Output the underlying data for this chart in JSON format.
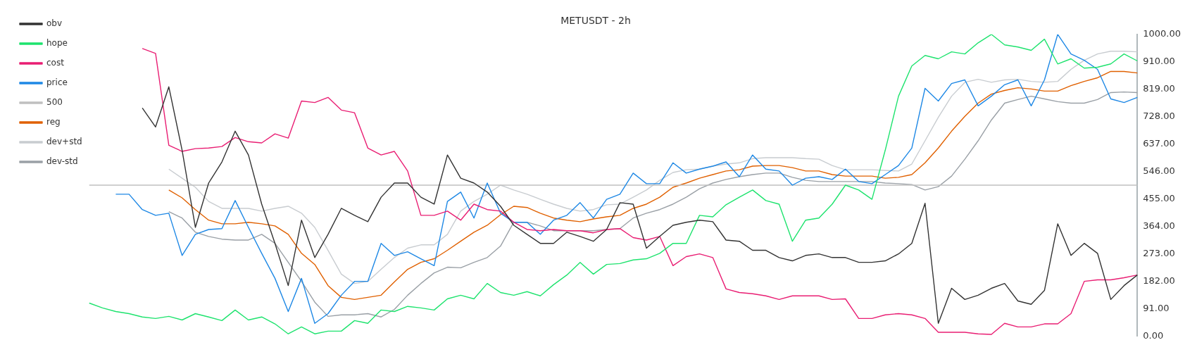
{
  "chart_data": {
    "type": "line",
    "title": "METUSDT - 2h",
    "categories": [
      null,
      null,
      null,
      null,
      null,
      null,
      null,
      null,
      null,
      null,
      null,
      null,
      null,
      null,
      null,
      null,
      null,
      null,
      null,
      null,
      null,
      null,
      null,
      null,
      null,
      null,
      null,
      null,
      null,
      null,
      null,
      null,
      null,
      null,
      null,
      null,
      null,
      null,
      null,
      null,
      null,
      null,
      null,
      null,
      null,
      null,
      null,
      null,
      null,
      null,
      null,
      null,
      null,
      null,
      null,
      null,
      null,
      null,
      null,
      null,
      null,
      null,
      null,
      null,
      null,
      null,
      null,
      null,
      null,
      null,
      null,
      null,
      null,
      null,
      null,
      null,
      null,
      null,
      null,
      null
    ],
    "series": [
      {
        "name": "obv",
        "color": "#333333",
        "values": [
          null,
          null,
          null,
          null,
          756,
          693,
          826,
          616,
          360,
          507,
          577,
          679,
          600,
          437,
          307,
          167,
          384,
          260,
          337,
          423,
          400,
          379,
          460,
          507,
          507,
          460,
          437,
          600,
          523,
          507,
          477,
          430,
          367,
          337,
          307,
          307,
          344,
          330,
          314,
          353,
          442,
          437,
          291,
          330,
          367,
          377,
          384,
          379,
          318,
          314,
          284,
          284,
          260,
          249,
          267,
          272,
          260,
          260,
          244,
          244,
          249,
          272,
          307,
          440,
          42,
          158,
          121,
          135,
          158,
          174,
          116,
          105,
          151,
          372,
          267,
          307,
          274,
          121,
          167,
          202
        ]
      },
      {
        "name": "hope",
        "color": "#1ee36e",
        "values": [
          109,
          93,
          81,
          74,
          63,
          58,
          65,
          53,
          74,
          63,
          51,
          86,
          53,
          63,
          40,
          7,
          30,
          7,
          16,
          16,
          51,
          42,
          86,
          81,
          98,
          93,
          86,
          123,
          135,
          123,
          174,
          144,
          135,
          147,
          133,
          170,
          202,
          244,
          205,
          237,
          240,
          252,
          256,
          274,
          307,
          307,
          400,
          395,
          435,
          460,
          484,
          449,
          437,
          314,
          384,
          391,
          437,
          500,
          484,
          453,
          616,
          795,
          895,
          930,
          919,
          942,
          935,
          972,
          1000,
          965,
          958,
          947,
          984,
          902,
          919,
          888,
          891,
          902,
          935,
          912
        ]
      },
      {
        "name": "cost",
        "color": "#e91e73",
        "values": [
          null,
          null,
          null,
          null,
          953,
          937,
          632,
          612,
          621,
          623,
          628,
          658,
          644,
          640,
          670,
          656,
          779,
          774,
          791,
          749,
          740,
          623,
          600,
          612,
          547,
          400,
          400,
          414,
          384,
          437,
          419,
          414,
          377,
          353,
          349,
          353,
          349,
          349,
          342,
          353,
          356,
          326,
          318,
          330,
          233,
          263,
          272,
          260,
          156,
          144,
          140,
          133,
          121,
          133,
          133,
          133,
          121,
          123,
          58,
          58,
          70,
          74,
          70,
          58,
          12,
          12,
          12,
          7,
          5,
          42,
          30,
          30,
          40,
          40,
          74,
          181,
          186,
          186,
          193,
          202
        ]
      },
      {
        "name": "price",
        "color": "#1e88e5",
        "values": [
          null,
          null,
          470,
          470,
          419,
          400,
          407,
          267,
          337,
          353,
          356,
          449,
          360,
          274,
          191,
          81,
          191,
          42,
          74,
          135,
          181,
          181,
          307,
          267,
          279,
          256,
          233,
          446,
          477,
          391,
          507,
          407,
          377,
          377,
          337,
          384,
          400,
          442,
          391,
          453,
          470,
          540,
          505,
          505,
          574,
          540,
          553,
          563,
          577,
          528,
          600,
          553,
          547,
          500,
          523,
          528,
          519,
          553,
          512,
          505,
          535,
          565,
          623,
          821,
          779,
          837,
          849,
          763,
          795,
          833,
          849,
          763,
          849,
          1000,
          935,
          914,
          884,
          786,
          774,
          791
        ]
      },
      {
        "name": "500",
        "color": "#c0c0c0",
        "values": [
          500,
          500,
          500,
          500,
          500,
          500,
          500,
          500,
          500,
          500,
          500,
          500,
          500,
          500,
          500,
          500,
          500,
          500,
          500,
          500,
          500,
          500,
          500,
          500,
          500,
          500,
          500,
          500,
          500,
          500,
          500,
          500,
          500,
          500,
          500,
          500,
          500,
          500,
          500,
          500,
          500,
          500,
          500,
          500,
          500,
          500,
          500,
          500,
          500,
          500,
          500,
          500,
          500,
          500,
          500,
          500,
          500,
          500,
          500,
          500,
          500,
          500,
          500,
          500,
          500,
          500,
          500,
          500,
          500,
          500,
          500,
          500,
          500,
          500,
          500,
          500,
          500,
          500,
          500,
          500
        ]
      },
      {
        "name": "reg",
        "color": "#e06000",
        "values": [
          null,
          null,
          null,
          null,
          null,
          null,
          484,
          458,
          419,
          384,
          372,
          372,
          377,
          372,
          365,
          337,
          274,
          237,
          167,
          128,
          121,
          128,
          135,
          179,
          221,
          244,
          256,
          284,
          314,
          344,
          367,
          402,
          430,
          426,
          407,
          391,
          384,
          379,
          388,
          395,
          400,
          423,
          437,
          460,
          493,
          507,
          523,
          535,
          547,
          551,
          563,
          565,
          565,
          558,
          547,
          547,
          535,
          530,
          530,
          530,
          523,
          526,
          535,
          574,
          623,
          679,
          728,
          772,
          802,
          814,
          823,
          819,
          812,
          812,
          830,
          844,
          856,
          877,
          877,
          872
        ]
      },
      {
        "name": "dev+std",
        "color": "#c8ccd0",
        "values": [
          null,
          null,
          null,
          null,
          null,
          null,
          553,
          523,
          493,
          446,
          423,
          423,
          423,
          414,
          423,
          430,
          407,
          360,
          284,
          205,
          174,
          181,
          221,
          260,
          291,
          302,
          302,
          337,
          414,
          446,
          470,
          500,
          484,
          470,
          453,
          437,
          423,
          414,
          419,
          435,
          437,
          460,
          484,
          516,
          542,
          551,
          553,
          563,
          570,
          574,
          588,
          591,
          591,
          591,
          588,
          586,
          565,
          551,
          551,
          551,
          549,
          547,
          570,
          647,
          725,
          795,
          841,
          851,
          841,
          849,
          851,
          844,
          841,
          844,
          884,
          914,
          935,
          944,
          944,
          942
        ]
      },
      {
        "name": "dev-std",
        "color": "#9aa0a6",
        "values": [
          null,
          null,
          null,
          null,
          null,
          null,
          412,
          391,
          344,
          330,
          321,
          318,
          318,
          337,
          307,
          244,
          181,
          112,
          65,
          70,
          70,
          74,
          63,
          88,
          135,
          174,
          209,
          228,
          226,
          244,
          260,
          298,
          377,
          377,
          365,
          349,
          349,
          349,
          349,
          353,
          356,
          391,
          407,
          419,
          437,
          460,
          488,
          507,
          519,
          528,
          535,
          540,
          540,
          526,
          516,
          512,
          512,
          512,
          512,
          512,
          507,
          505,
          502,
          484,
          495,
          530,
          586,
          647,
          716,
          772,
          784,
          795,
          786,
          777,
          772,
          772,
          784,
          807,
          809,
          807
        ]
      }
    ],
    "ylim": [
      0,
      1000
    ],
    "yticks": [
      {
        "value": 0,
        "label": "0.00"
      },
      {
        "value": 91,
        "label": "91.00"
      },
      {
        "value": 182,
        "label": "182.00"
      },
      {
        "value": 273,
        "label": "273.00"
      },
      {
        "value": 364,
        "label": "364.00"
      },
      {
        "value": 455,
        "label": "455.00"
      },
      {
        "value": 546,
        "label": "546.00"
      },
      {
        "value": 637,
        "label": "637.00"
      },
      {
        "value": 728,
        "label": "728.00"
      },
      {
        "value": 819,
        "label": "819.00"
      },
      {
        "value": 910,
        "label": "910.00"
      },
      {
        "value": 1000,
        "label": "1000.00"
      }
    ],
    "tick_labels": "y",
    "grid": false,
    "legend": "top left",
    "marker": "none",
    "line_style": "solid"
  }
}
